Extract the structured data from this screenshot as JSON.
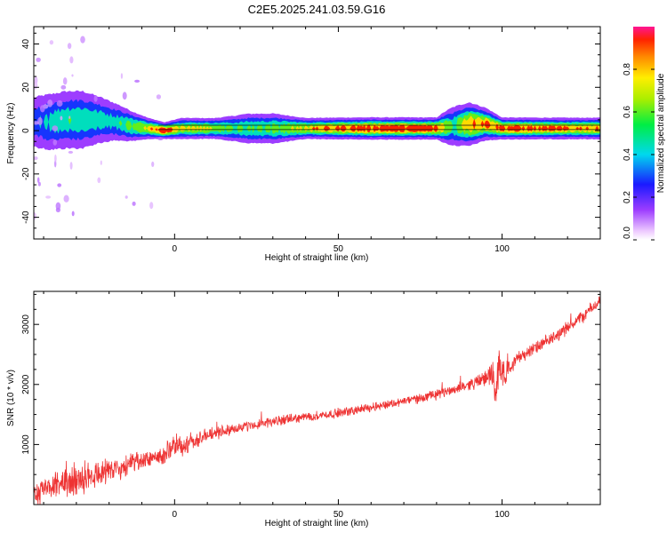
{
  "title": "C2E5.2025.241.03.59.G16",
  "chart_data": [
    {
      "type": "heatmap",
      "name": "spectrogram",
      "xlabel": "Height of straight line (km)",
      "ylabel": "Frequency (Hz)",
      "xlim": [
        -43,
        130
      ],
      "ylim": [
        -50,
        48
      ],
      "xticks": [
        0,
        50,
        100
      ],
      "yticks": [
        -40,
        -20,
        0,
        20,
        40
      ],
      "colorbar": {
        "label": "Normalized spectral amplitude",
        "range": [
          0,
          1
        ],
        "ticks": [
          0.0,
          0.2,
          0.4,
          0.6,
          0.8
        ],
        "tick_labels": [
          "0.0",
          "0.2",
          "0.4",
          "0.6",
          "0.8"
        ]
      },
      "ridge": {
        "height_km": [
          -43,
          -38,
          -33,
          -28,
          -23,
          -18,
          -13,
          -8,
          -3,
          2,
          7,
          12,
          17,
          22,
          30,
          40,
          50,
          60,
          70,
          80,
          85,
          90,
          95,
          100,
          110,
          120,
          130
        ],
        "frequency_hz": [
          4,
          4,
          5,
          5,
          5,
          4,
          2,
          1,
          0,
          1,
          1,
          1,
          1,
          1,
          1,
          1,
          1,
          1,
          1,
          1,
          2,
          3,
          3,
          1,
          1,
          1,
          1
        ],
        "amplitude": [
          0.3,
          0.45,
          0.5,
          0.5,
          0.45,
          0.45,
          0.6,
          0.75,
          1.0,
          0.75,
          0.75,
          0.7,
          0.55,
          0.55,
          0.6,
          0.75,
          0.9,
          1.0,
          1.0,
          0.95,
          0.5,
          0.9,
          0.9,
          0.95,
          0.9,
          0.85,
          0.85
        ],
        "width_hz": [
          6,
          6,
          6,
          6,
          5,
          4,
          3,
          2,
          1.5,
          2,
          2,
          2,
          2.5,
          3,
          3,
          2,
          2,
          2,
          2,
          2,
          4,
          4,
          3,
          2,
          2,
          2,
          2
        ]
      }
    },
    {
      "type": "line",
      "name": "snr",
      "xlabel": "Height of straight line (km)",
      "ylabel": "SNR (10 * v/v)",
      "xlim": [
        -43,
        130
      ],
      "ylim": [
        0,
        3550
      ],
      "xticks": [
        0,
        50,
        100
      ],
      "yticks": [
        1000,
        2000,
        3000
      ],
      "color": "#ee3333",
      "series": [
        {
          "name": "SNR",
          "x": [
            -43,
            -40,
            -35,
            -30,
            -27,
            -25,
            -20,
            -15,
            -10,
            -5,
            -2,
            0,
            3,
            5,
            10,
            15,
            20,
            25,
            30,
            40,
            50,
            60,
            70,
            80,
            90,
            95,
            97,
            98,
            99,
            100,
            101,
            102,
            105,
            110,
            115,
            120,
            125,
            130
          ],
          "y": [
            180,
            250,
            320,
            400,
            480,
            520,
            580,
            620,
            720,
            800,
            870,
            950,
            1000,
            1050,
            1150,
            1230,
            1280,
            1330,
            1380,
            1460,
            1520,
            1620,
            1720,
            1830,
            2000,
            2100,
            2200,
            1700,
            2400,
            2200,
            2100,
            2300,
            2450,
            2600,
            2750,
            2950,
            3150,
            3400
          ],
          "noise": [
            250,
            230,
            260,
            300,
            320,
            300,
            250,
            230,
            200,
            170,
            250,
            230,
            230,
            180,
            140,
            120,
            110,
            100,
            100,
            90,
            90,
            90,
            90,
            100,
            110,
            160,
            300,
            400,
            350,
            300,
            250,
            180,
            130,
            130,
            130,
            130,
            130,
            130
          ]
        }
      ]
    }
  ]
}
